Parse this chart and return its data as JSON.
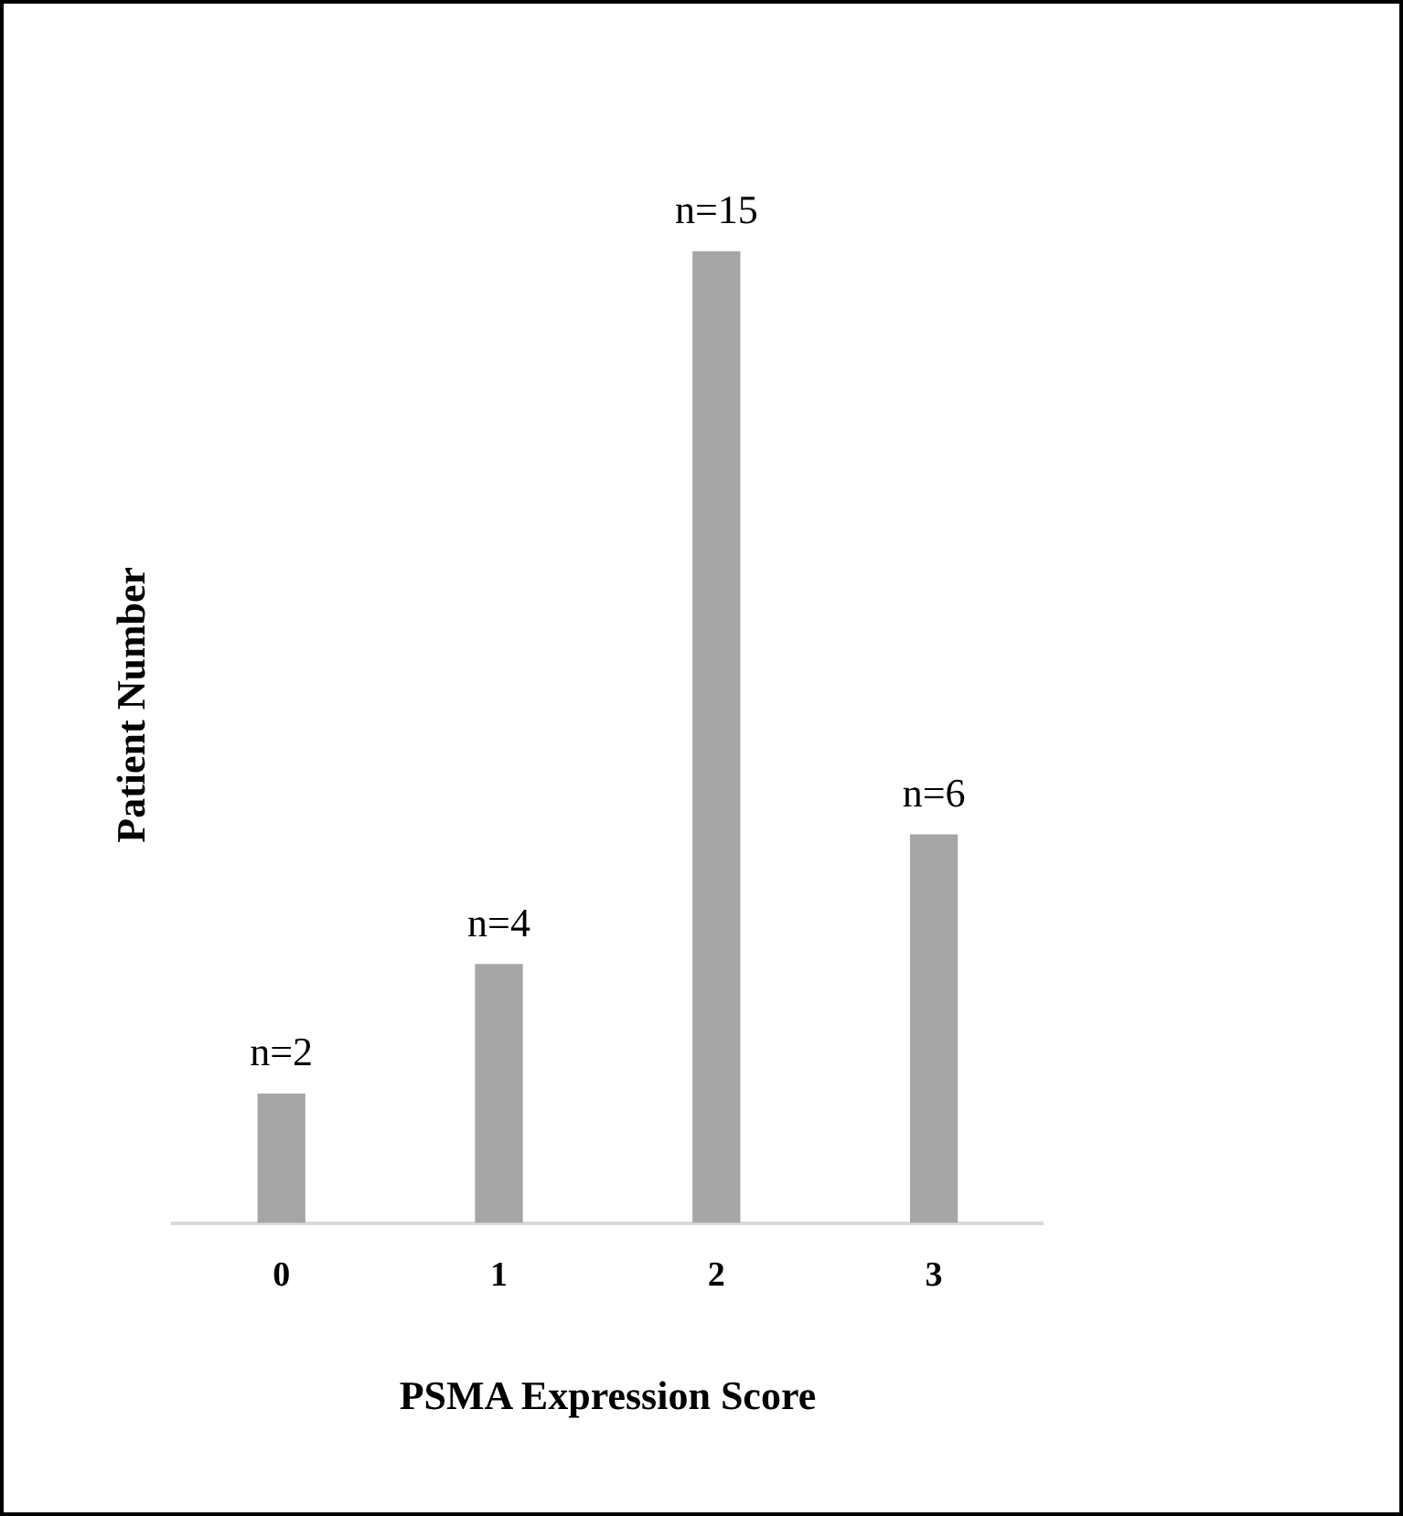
{
  "chart_data": {
    "type": "bar",
    "xlabel": "PSMA Expression Score",
    "ylabel": "Patient Number",
    "categories": [
      "0",
      "1",
      "2",
      "3"
    ],
    "values": [
      2,
      4,
      15,
      6
    ],
    "color": "#a6a6a6",
    "value_labels": [
      "n=2",
      "n=4",
      "n=15",
      "n=6"
    ],
    "grid": false,
    "legend": false
  }
}
